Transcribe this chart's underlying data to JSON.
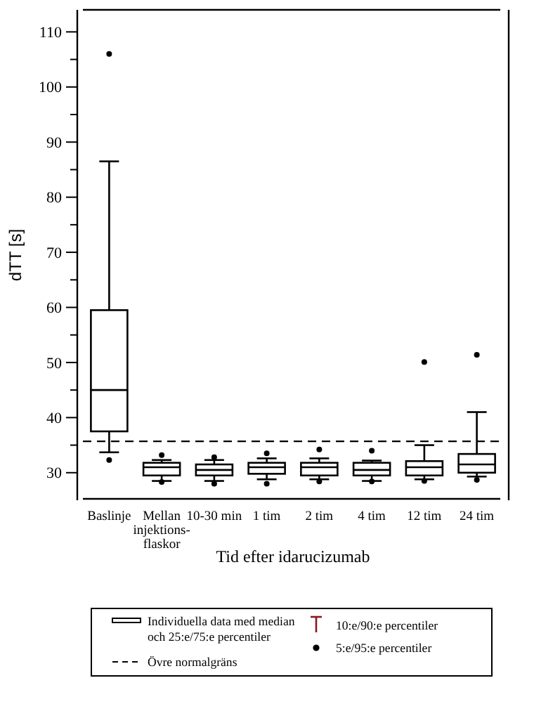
{
  "chart_data": {
    "type": "box",
    "xlabel": "Tid efter idarucizumab",
    "ylabel": "dTT [s]",
    "categories": [
      "Baslinje",
      "Mellan\ninjektions-\nflaskor",
      "10-30 min",
      "1 tim",
      "2 tim",
      "4 tim",
      "12 tim",
      "24 tim"
    ],
    "boxes": [
      {
        "low": 33.7,
        "q1": 37.5,
        "median": 45,
        "q3": 59.5,
        "high": 86.5,
        "outliers": [
          32.3,
          106
        ]
      },
      {
        "low": 28.5,
        "q1": 29.5,
        "median": 31,
        "q3": 31.8,
        "high": 32.3,
        "outliers": [
          28.3,
          33.2
        ]
      },
      {
        "low": 28.5,
        "q1": 29.5,
        "median": 30.5,
        "q3": 31.5,
        "high": 32.3,
        "outliers": [
          28,
          32.8
        ]
      },
      {
        "low": 28.8,
        "q1": 29.8,
        "median": 31,
        "q3": 31.8,
        "high": 32.6,
        "outliers": [
          28,
          33.5
        ]
      },
      {
        "low": 28.8,
        "q1": 29.5,
        "median": 31,
        "q3": 31.8,
        "high": 32.6,
        "outliers": [
          28.4,
          34.2
        ]
      },
      {
        "low": 28.5,
        "q1": 29.5,
        "median": 30.5,
        "q3": 31.8,
        "high": 32.2,
        "outliers": [
          28.4,
          34
        ]
      },
      {
        "low": 28.8,
        "q1": 29.5,
        "median": 31,
        "q3": 32.1,
        "high": 35,
        "outliers": [
          28.5,
          50.1
        ]
      },
      {
        "low": 29.3,
        "q1": 30,
        "median": 31.5,
        "q3": 33.4,
        "high": 41,
        "outliers": [
          28.7,
          51.4
        ]
      }
    ],
    "color": "#000000",
    "ylim": [
      25,
      114
    ],
    "yticks": [
      30,
      {
        "value": 35,
        "label": null
      },
      40,
      {
        "value": 45,
        "label": null
      },
      50,
      {
        "value": 55,
        "label": null
      },
      60,
      {
        "value": 65,
        "label": null
      },
      70,
      {
        "value": 75,
        "label": null
      },
      80,
      {
        "value": 85,
        "label": null
      },
      90,
      {
        "value": 95,
        "label": null
      },
      100,
      {
        "value": 105,
        "label": null
      },
      110
    ],
    "ref_lines": [
      {
        "axis": "y",
        "value": 35.7,
        "label": "Övre normalgräns",
        "line_style": "dashed"
      }
    ],
    "annotations": [
      "Individuella data med median\noch 25:e/75:e percentiler",
      "10:e/90:e percentiler",
      "5:e/95:e percentiler"
    ],
    "legend": "bottom",
    "grid": false
  }
}
